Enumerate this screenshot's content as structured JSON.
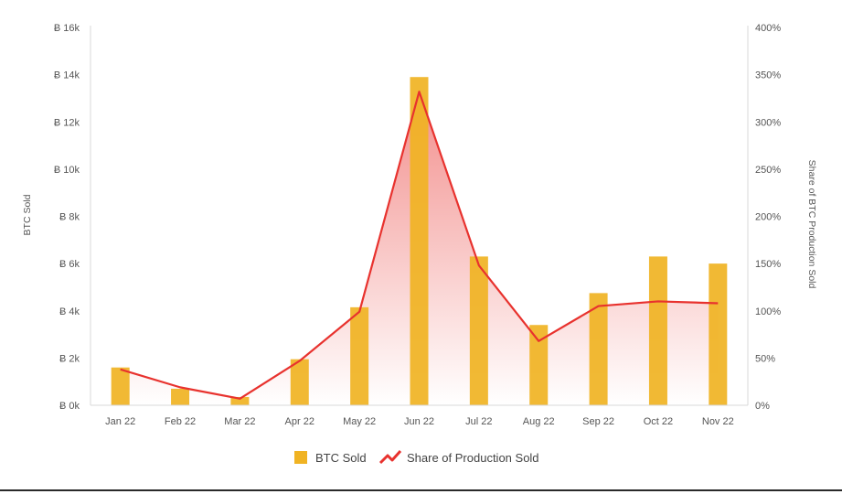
{
  "chart_data": {
    "type": "bar",
    "categories": [
      "Jan 22",
      "Feb 22",
      "Mar 22",
      "Apr 22",
      "May 22",
      "Jun 22",
      "Jul 22",
      "Aug 22",
      "Sep 22",
      "Oct 22",
      "Nov 22"
    ],
    "series": [
      {
        "name": "BTC Sold",
        "type": "bar",
        "axis": "left",
        "color": "#f0b323",
        "values": [
          1600,
          700,
          350,
          1950,
          4150,
          13900,
          6300,
          3400,
          4750,
          6300,
          6000
        ]
      },
      {
        "name": "Share of Production Sold",
        "type": "line",
        "axis": "right",
        "color": "#e8322e",
        "values": [
          38,
          19,
          7,
          47,
          99,
          332,
          148,
          68,
          105,
          110,
          108
        ]
      }
    ],
    "ylabel": "BTC Sold",
    "y2label": "Share of BTC Production Sold",
    "ylim": [
      0,
      16000
    ],
    "y2lim": [
      0,
      400
    ],
    "yticks": [
      "Ƀ 0k",
      "Ƀ 2k",
      "Ƀ 4k",
      "Ƀ 6k",
      "Ƀ 8k",
      "Ƀ 10k",
      "Ƀ 12k",
      "Ƀ 14k",
      "Ƀ 16k"
    ],
    "y2ticks": [
      "0%",
      "50%",
      "100%",
      "150%",
      "200%",
      "250%",
      "300%",
      "350%",
      "400%"
    ],
    "grid": false,
    "legend": {
      "position": "bottom",
      "items": [
        "BTC Sold",
        "Share of Production Sold"
      ]
    }
  }
}
